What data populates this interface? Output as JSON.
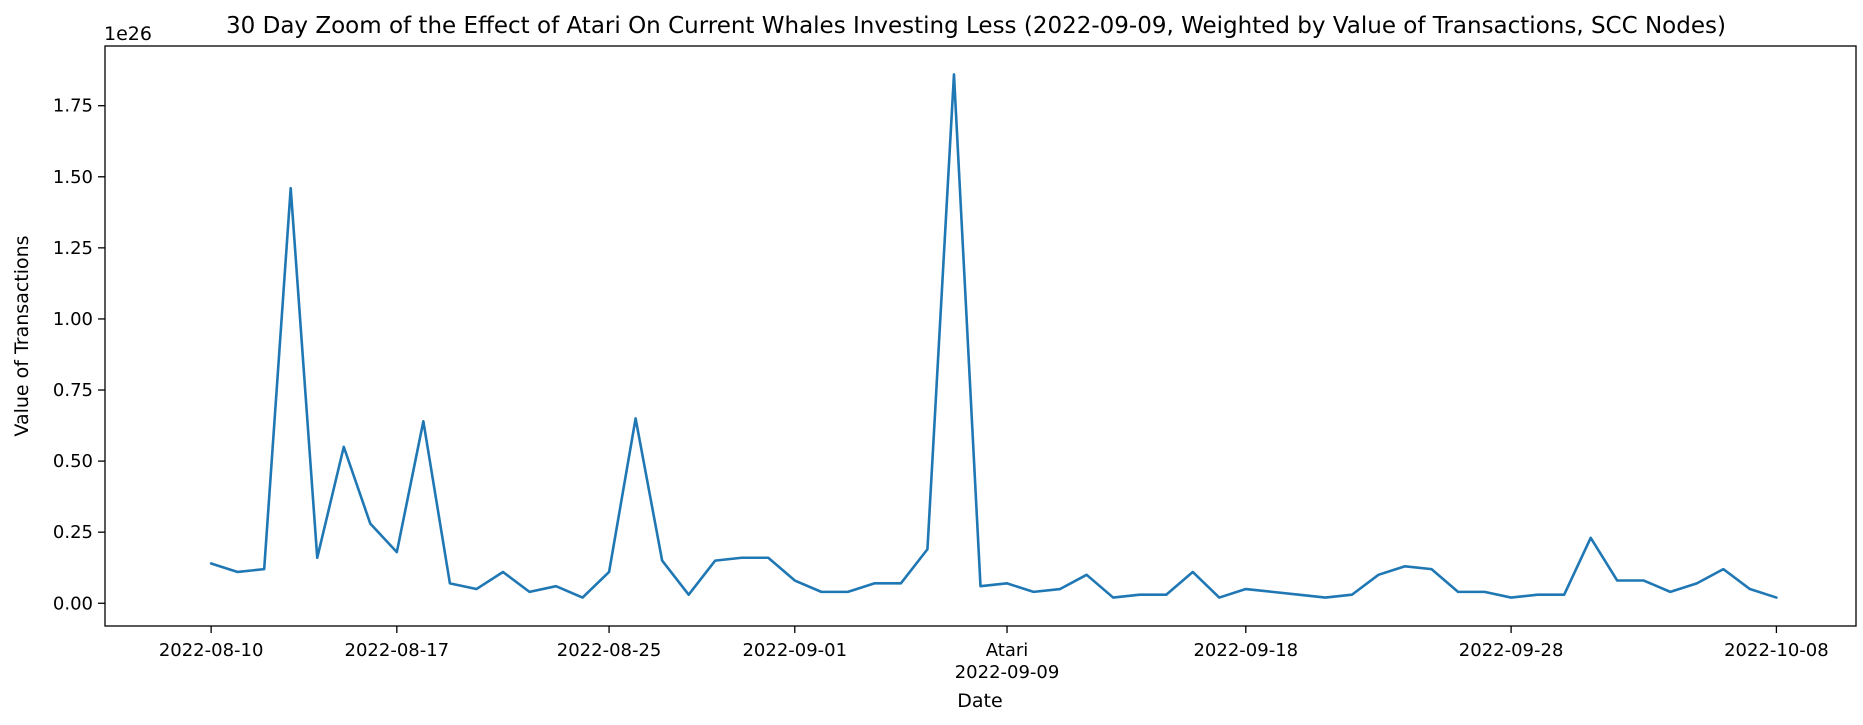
{
  "chart_data": {
    "type": "line",
    "title": "30 Day Zoom of the Effect of Atari On Current Whales Investing Less (2022-09-09, Weighted by Value of Transactions, SCC Nodes)",
    "xlabel": "Date",
    "ylabel": "Value of Transactions",
    "y_offset_label": "1e26",
    "ylim": [
      -0.08,
      1.96
    ],
    "y_ticks": [
      0.0,
      0.25,
      0.5,
      0.75,
      1.0,
      1.25,
      1.5,
      1.75
    ],
    "y_tick_labels": [
      "0.00",
      "0.25",
      "0.50",
      "0.75",
      "1.00",
      "1.25",
      "1.50",
      "1.75"
    ],
    "xlim": [
      "2022-08-06",
      "2022-10-11"
    ],
    "x_ticks": [
      {
        "date": "2022-08-10",
        "label": "2022-08-10"
      },
      {
        "date": "2022-08-17",
        "label": "2022-08-17"
      },
      {
        "date": "2022-08-25",
        "label": "2022-08-25"
      },
      {
        "date": "2022-09-01",
        "label": "2022-09-01"
      },
      {
        "date": "2022-09-09",
        "label": "2022-09-09",
        "annotation": "Atari"
      },
      {
        "date": "2022-09-18",
        "label": "2022-09-18"
      },
      {
        "date": "2022-09-28",
        "label": "2022-09-28"
      },
      {
        "date": "2022-10-08",
        "label": "2022-10-08"
      }
    ],
    "grid": false,
    "series": [
      {
        "color": "#1f77b4",
        "x": [
          "2022-08-10",
          "2022-08-11",
          "2022-08-12",
          "2022-08-13",
          "2022-08-14",
          "2022-08-15",
          "2022-08-16",
          "2022-08-17",
          "2022-08-18",
          "2022-08-19",
          "2022-08-20",
          "2022-08-21",
          "2022-08-22",
          "2022-08-23",
          "2022-08-24",
          "2022-08-25",
          "2022-08-26",
          "2022-08-27",
          "2022-08-28",
          "2022-08-29",
          "2022-08-30",
          "2022-08-31",
          "2022-09-01",
          "2022-09-02",
          "2022-09-03",
          "2022-09-04",
          "2022-09-05",
          "2022-09-06",
          "2022-09-07",
          "2022-09-08",
          "2022-09-09",
          "2022-09-10",
          "2022-09-11",
          "2022-09-12",
          "2022-09-13",
          "2022-09-14",
          "2022-09-15",
          "2022-09-16",
          "2022-09-17",
          "2022-09-18",
          "2022-09-19",
          "2022-09-20",
          "2022-09-21",
          "2022-09-22",
          "2022-09-23",
          "2022-09-24",
          "2022-09-25",
          "2022-09-26",
          "2022-09-27",
          "2022-09-28",
          "2022-09-29",
          "2022-09-30",
          "2022-10-01",
          "2022-10-02",
          "2022-10-03",
          "2022-10-04",
          "2022-10-05",
          "2022-10-06",
          "2022-10-07",
          "2022-10-08"
        ],
        "y": [
          0.14,
          0.11,
          0.12,
          1.46,
          0.16,
          0.55,
          0.28,
          0.18,
          0.64,
          0.07,
          0.05,
          0.11,
          0.04,
          0.06,
          0.02,
          0.11,
          0.65,
          0.15,
          0.03,
          0.15,
          0.16,
          0.16,
          0.08,
          0.04,
          0.04,
          0.07,
          0.07,
          0.19,
          1.86,
          0.06,
          0.07,
          0.04,
          0.05,
          0.1,
          0.02,
          0.03,
          0.03,
          0.11,
          0.02,
          0.05,
          0.04,
          0.03,
          0.02,
          0.03,
          0.1,
          0.13,
          0.12,
          0.04,
          0.04,
          0.02,
          0.03,
          0.03,
          0.23,
          0.08,
          0.08,
          0.04,
          0.07,
          0.12,
          0.05,
          0.02
        ]
      }
    ]
  }
}
